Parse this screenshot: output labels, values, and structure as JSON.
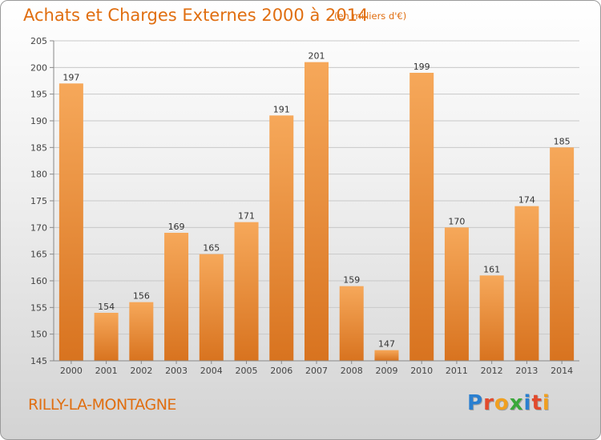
{
  "header": {
    "title": "Achats et Charges Externes 2000 à 2014",
    "subtitle": "(en milliers d'€)"
  },
  "footer": {
    "town": "RILLY-LA-MONTAGNE",
    "logo_letters": [
      "P",
      "r",
      "o",
      "x",
      "i",
      "t",
      "i"
    ],
    "logo_colors": [
      "#2a7fd0",
      "#e24a2c",
      "#f0a020",
      "#3aa83a",
      "#2a7fd0",
      "#e24a2c",
      "#f0a020"
    ]
  },
  "chart_data": {
    "type": "bar",
    "categories": [
      "2000",
      "2001",
      "2002",
      "2003",
      "2004",
      "2005",
      "2006",
      "2007",
      "2008",
      "2009",
      "2010",
      "2011",
      "2012",
      "2013",
      "2014"
    ],
    "values": [
      197,
      154,
      156,
      169,
      165,
      171,
      191,
      201,
      159,
      147,
      199,
      170,
      161,
      174,
      185
    ],
    "ylim": [
      145,
      205
    ],
    "yticks": [
      145,
      150,
      155,
      160,
      165,
      170,
      175,
      180,
      185,
      190,
      195,
      200,
      205
    ],
    "grid": true,
    "bar_color_top": "#f6a85a",
    "bar_color_bottom": "#d8731f",
    "title": "Achats et Charges Externes 2000 à 2014",
    "xlabel": "",
    "ylabel": ""
  }
}
